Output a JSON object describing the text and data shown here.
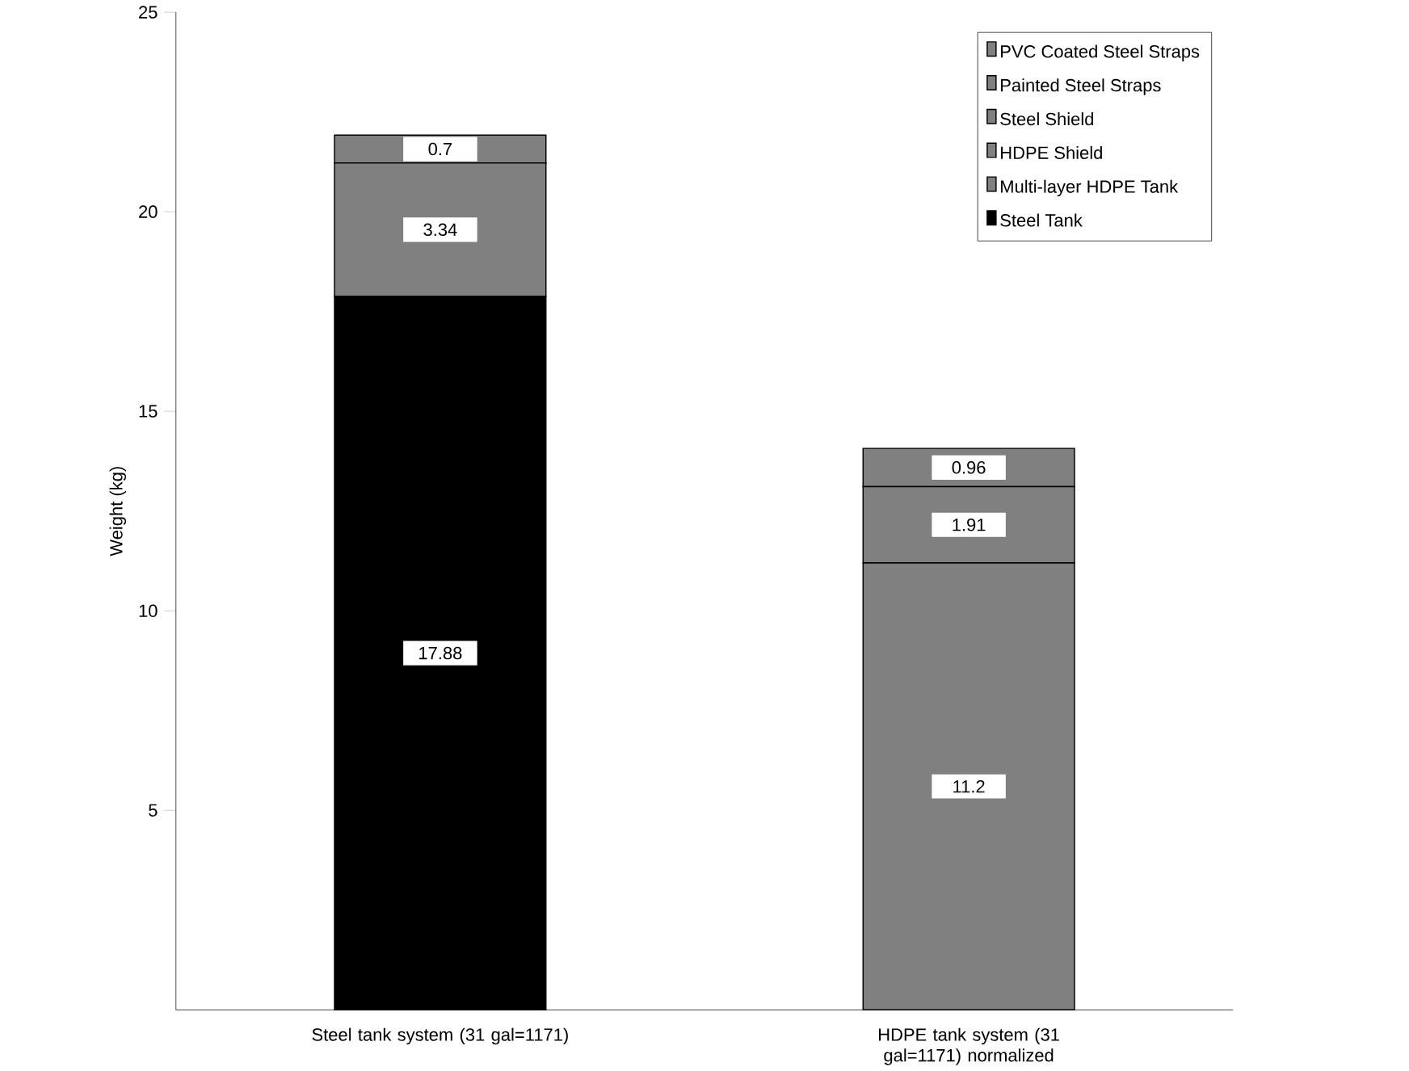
{
  "chart_data": {
    "type": "bar",
    "stacked": true,
    "ylabel": "Weight (kg)",
    "categories": [
      "Steel tank system (31 gal=1171)",
      "HDPE tank system (31 gal=1171) normalized"
    ],
    "series": [
      {
        "name": "Steel Tank",
        "color": "#000000",
        "values": [
          17.88,
          null
        ]
      },
      {
        "name": "Multi-layer HDPE Tank",
        "color": "#808080",
        "values": [
          null,
          11.2
        ]
      },
      {
        "name": "HDPE Shield",
        "color": "#808080",
        "values": [
          null,
          1.91
        ]
      },
      {
        "name": "Steel Shield",
        "color": "#808080",
        "values": [
          3.34,
          null
        ]
      },
      {
        "name": "Painted Steel Straps",
        "color": "#808080",
        "values": [
          null,
          0.96
        ]
      },
      {
        "name": "PVC Coated Steel Straps",
        "color": "#808080",
        "values": [
          0.7,
          null
        ]
      }
    ],
    "ylim": [
      0,
      25
    ],
    "yticks": [
      5,
      10,
      15,
      20,
      25
    ],
    "data_labels": true,
    "legend": "top right",
    "grid": false
  }
}
